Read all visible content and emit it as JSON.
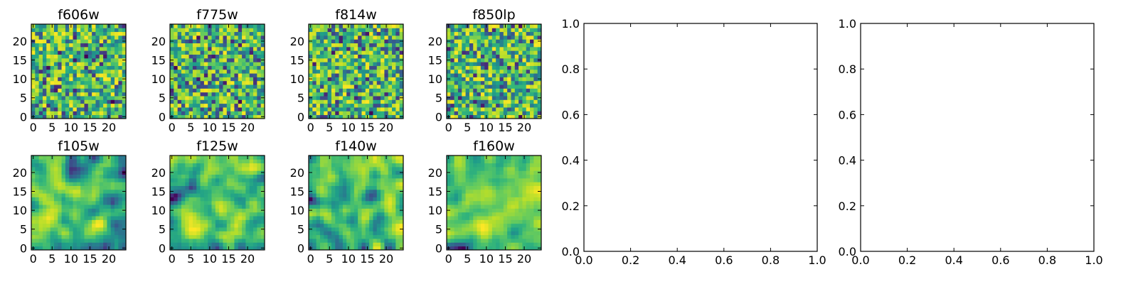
{
  "figure": {
    "panel_count": 10
  },
  "chart_data": [
    {
      "type": "heatmap",
      "title": "f606w",
      "xticks": [
        "0",
        "5",
        "10",
        "15",
        "20"
      ],
      "yticks": [
        "0",
        "5",
        "10",
        "15",
        "20"
      ],
      "xlim": [
        -0.5,
        24.5
      ],
      "ylim": [
        -0.5,
        24.5
      ],
      "grid_size": [
        25,
        25
      ],
      "colormap": "viridis",
      "seed": 11,
      "smooth": false,
      "tick_fontsize": 17
    },
    {
      "type": "heatmap",
      "title": "f775w",
      "xticks": [
        "0",
        "5",
        "10",
        "15",
        "20"
      ],
      "yticks": [
        "0",
        "5",
        "10",
        "15",
        "20"
      ],
      "xlim": [
        -0.5,
        24.5
      ],
      "ylim": [
        -0.5,
        24.5
      ],
      "grid_size": [
        25,
        25
      ],
      "colormap": "viridis",
      "seed": 23,
      "smooth": false
    },
    {
      "type": "heatmap",
      "title": "f814w",
      "xticks": [
        "0",
        "5",
        "10",
        "15",
        "20"
      ],
      "yticks": [
        "0",
        "5",
        "10",
        "15",
        "20"
      ],
      "xlim": [
        -0.5,
        24.5
      ],
      "ylim": [
        -0.5,
        24.5
      ],
      "grid_size": [
        25,
        25
      ],
      "colormap": "viridis",
      "seed": 37,
      "smooth": false
    },
    {
      "type": "heatmap",
      "title": "f850lp",
      "xticks": [
        "0",
        "5",
        "10",
        "15",
        "20"
      ],
      "yticks": [
        "0",
        "5",
        "10",
        "15",
        "20"
      ],
      "xlim": [
        -0.5,
        24.5
      ],
      "ylim": [
        -0.5,
        24.5
      ],
      "grid_size": [
        25,
        25
      ],
      "colormap": "viridis",
      "seed": 41,
      "smooth": false
    },
    {
      "type": "line",
      "title": "",
      "xticks": [
        "0.0",
        "0.2",
        "0.4",
        "0.6",
        "0.8",
        "1.0"
      ],
      "yticks": [
        "0.0",
        "0.2",
        "0.4",
        "0.6",
        "0.8",
        "1.0"
      ],
      "xlim": [
        0,
        1
      ],
      "ylim": [
        0,
        1
      ],
      "series": []
    },
    {
      "type": "line",
      "title": "",
      "xticks": [
        "0.0",
        "0.2",
        "0.4",
        "0.6",
        "0.8",
        "1.0"
      ],
      "yticks": [
        "0.0",
        "0.2",
        "0.4",
        "0.6",
        "0.8",
        "1.0"
      ],
      "xlim": [
        0,
        1
      ],
      "ylim": [
        0,
        1
      ],
      "series": []
    },
    {
      "type": "heatmap",
      "title": "f105w",
      "xticks": [
        "0",
        "5",
        "10",
        "15",
        "20"
      ],
      "yticks": [
        "0",
        "5",
        "10",
        "15",
        "20"
      ],
      "xlim": [
        -0.5,
        24.5
      ],
      "ylim": [
        -0.5,
        24.5
      ],
      "grid_size": [
        25,
        25
      ],
      "colormap": "viridis",
      "seed": 53,
      "smooth": true
    },
    {
      "type": "heatmap",
      "title": "f125w",
      "xticks": [
        "0",
        "5",
        "10",
        "15",
        "20"
      ],
      "yticks": [
        "0",
        "5",
        "10",
        "15",
        "20"
      ],
      "xlim": [
        -0.5,
        24.5
      ],
      "ylim": [
        -0.5,
        24.5
      ],
      "grid_size": [
        25,
        25
      ],
      "colormap": "viridis",
      "seed": 67,
      "smooth": true
    },
    {
      "type": "heatmap",
      "title": "f140w",
      "xticks": [
        "0",
        "5",
        "10",
        "15",
        "20"
      ],
      "yticks": [
        "0",
        "5",
        "10",
        "15",
        "20"
      ],
      "xlim": [
        -0.5,
        24.5
      ],
      "ylim": [
        -0.5,
        24.5
      ],
      "grid_size": [
        25,
        25
      ],
      "colormap": "viridis",
      "seed": 79,
      "smooth": true
    },
    {
      "type": "heatmap",
      "title": "f160w",
      "xticks": [
        "0",
        "5",
        "10",
        "15",
        "20"
      ],
      "yticks": [
        "0",
        "5",
        "10",
        "15",
        "20"
      ],
      "xlim": [
        -0.5,
        24.5
      ],
      "ylim": [
        -0.5,
        24.5
      ],
      "grid_size": [
        25,
        25
      ],
      "colormap": "viridis",
      "seed": 97,
      "smooth": true
    }
  ]
}
